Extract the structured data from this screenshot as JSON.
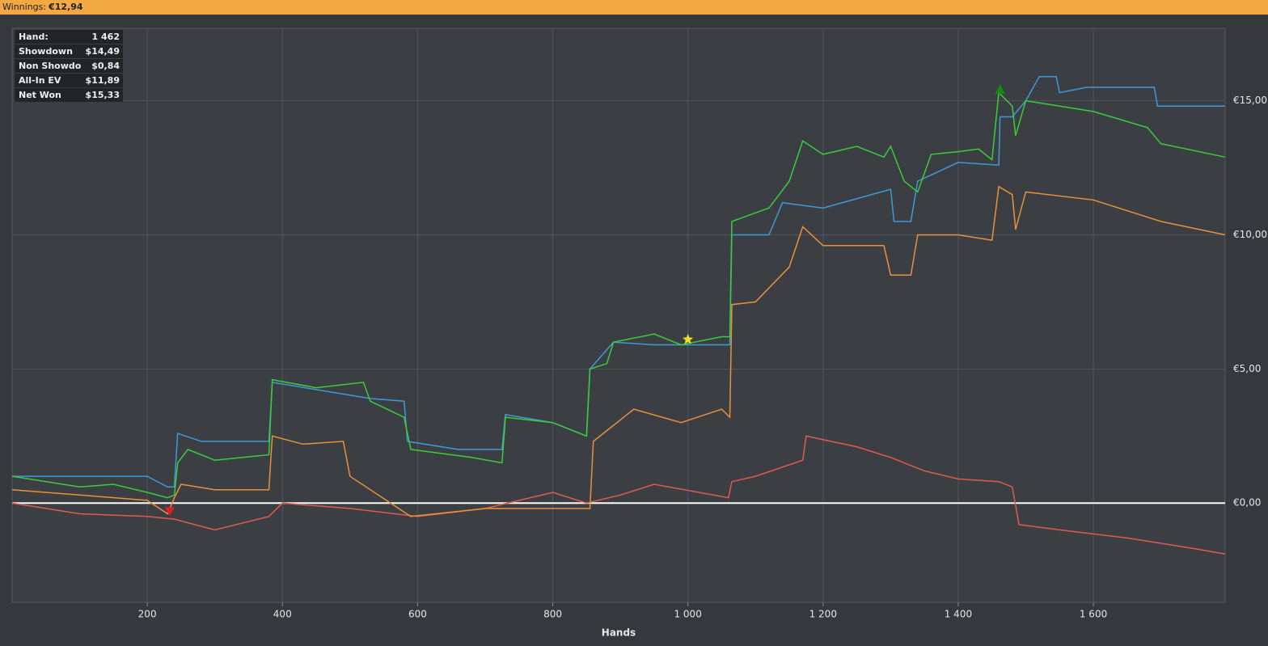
{
  "header": {
    "label": "Winnings:",
    "value": "€12,94"
  },
  "stats": [
    {
      "label": "Hand:",
      "value": "1 462"
    },
    {
      "label": "Showdown",
      "value": "$14,49"
    },
    {
      "label": "Non Showdown",
      "value": "$0,84"
    },
    {
      "label": "All-In EV",
      "value": "$11,89"
    },
    {
      "label": "Net Won",
      "value": "$15,33"
    }
  ],
  "chart_data": {
    "type": "line",
    "x_label": "Hands",
    "xlim": [
      0,
      1795
    ],
    "ylim": [
      -3.7,
      17.7
    ],
    "xticks": [
      200,
      400,
      600,
      800,
      {
        "value": 1000,
        "label": "1 000"
      },
      {
        "value": 1200,
        "label": "1 200"
      },
      {
        "value": 1400,
        "label": "1 400"
      },
      {
        "value": 1600,
        "label": "1 600"
      }
    ],
    "yticks": [
      {
        "value": 0,
        "label": "€0,00"
      },
      {
        "value": 5,
        "label": "€5,00"
      },
      {
        "value": 10,
        "label": "€10,00"
      },
      {
        "value": 15,
        "label": "€15,00"
      }
    ],
    "grid": true,
    "series": [
      {
        "name": "Non Showdown",
        "color": "#e05a50",
        "x": [
          0,
          100,
          200,
          240,
          300,
          380,
          400,
          500,
          600,
          700,
          800,
          850,
          900,
          950,
          1060,
          1065,
          1100,
          1170,
          1175,
          1250,
          1300,
          1350,
          1400,
          1460,
          1480,
          1490,
          1550,
          1650,
          1750,
          1795
        ],
        "values": [
          0.0,
          -0.4,
          -0.5,
          -0.6,
          -1.0,
          -0.5,
          0.0,
          -0.2,
          -0.5,
          -0.2,
          0.4,
          0.0,
          0.3,
          0.7,
          0.2,
          0.8,
          1.0,
          1.6,
          2.5,
          2.1,
          1.7,
          1.2,
          0.9,
          0.8,
          0.6,
          -0.8,
          -1.0,
          -1.3,
          -1.7,
          -1.9
        ]
      },
      {
        "name": "Showdown",
        "color": "#e8913a",
        "x": [
          0,
          100,
          200,
          230,
          240,
          250,
          300,
          380,
          385,
          430,
          490,
          500,
          590,
          700,
          855,
          860,
          920,
          990,
          1050,
          1062,
          1065,
          1100,
          1150,
          1170,
          1200,
          1290,
          1300,
          1330,
          1340,
          1400,
          1450,
          1460,
          1480,
          1485,
          1500,
          1600,
          1700,
          1795
        ],
        "values": [
          0.5,
          0.3,
          0.1,
          -0.4,
          0.2,
          0.7,
          0.5,
          0.5,
          2.5,
          2.2,
          2.3,
          1.0,
          -0.5,
          -0.2,
          -0.2,
          2.3,
          3.5,
          3.0,
          3.5,
          3.2,
          7.4,
          7.5,
          8.8,
          10.3,
          9.6,
          9.6,
          8.5,
          8.5,
          10.0,
          10.0,
          9.8,
          11.8,
          11.5,
          10.2,
          11.6,
          11.3,
          10.5,
          10.0
        ]
      },
      {
        "name": "All-In EV",
        "color": "#3f9ad8",
        "x": [
          0,
          200,
          230,
          240,
          245,
          280,
          380,
          385,
          530,
          580,
          585,
          660,
          725,
          730,
          800,
          850,
          855,
          890,
          950,
          1062,
          1065,
          1120,
          1140,
          1200,
          1300,
          1305,
          1330,
          1340,
          1400,
          1460,
          1462,
          1480,
          1500,
          1520,
          1545,
          1550,
          1590,
          1690,
          1695,
          1795
        ],
        "values": [
          1.0,
          1.0,
          0.6,
          0.6,
          2.6,
          2.3,
          2.3,
          4.5,
          3.9,
          3.8,
          2.3,
          2.0,
          2.0,
          3.3,
          3.0,
          2.5,
          5.0,
          6.0,
          5.9,
          5.9,
          10.0,
          10.0,
          11.2,
          11.0,
          11.7,
          10.5,
          10.5,
          12.0,
          12.7,
          12.6,
          14.4,
          14.4,
          15.0,
          15.9,
          15.9,
          15.3,
          15.5,
          15.5,
          14.8,
          14.8
        ]
      },
      {
        "name": "Net Won",
        "color": "#3ccc3c",
        "x": [
          0,
          100,
          150,
          200,
          230,
          240,
          245,
          260,
          300,
          380,
          385,
          450,
          520,
          530,
          580,
          590,
          680,
          725,
          730,
          800,
          850,
          855,
          880,
          890,
          950,
          990,
          1050,
          1062,
          1065,
          1120,
          1150,
          1170,
          1200,
          1250,
          1290,
          1300,
          1320,
          1340,
          1360,
          1400,
          1430,
          1450,
          1460,
          1480,
          1485,
          1500,
          1600,
          1680,
          1700,
          1795
        ],
        "values": [
          1.0,
          0.6,
          0.7,
          0.4,
          0.2,
          0.3,
          1.5,
          2.0,
          1.6,
          1.8,
          4.6,
          4.3,
          4.5,
          3.8,
          3.2,
          2.0,
          1.7,
          1.5,
          3.2,
          3.0,
          2.5,
          5.0,
          5.2,
          6.0,
          6.3,
          5.9,
          6.2,
          6.2,
          10.5,
          11.0,
          12.0,
          13.5,
          13.0,
          13.3,
          12.9,
          13.3,
          12.0,
          11.6,
          13.0,
          13.1,
          13.2,
          12.8,
          15.3,
          14.8,
          13.7,
          15.0,
          14.6,
          14.0,
          13.4,
          12.9
        ]
      }
    ],
    "markers": [
      {
        "shape": "triangle-down",
        "color": "#e02020",
        "x": 233,
        "y": -0.3
      },
      {
        "shape": "star",
        "color": "#f5e020",
        "x": 1000,
        "y": 6.1
      },
      {
        "shape": "triangle-up",
        "color": "#138a13",
        "x": 1462,
        "y": 15.4
      }
    ]
  }
}
